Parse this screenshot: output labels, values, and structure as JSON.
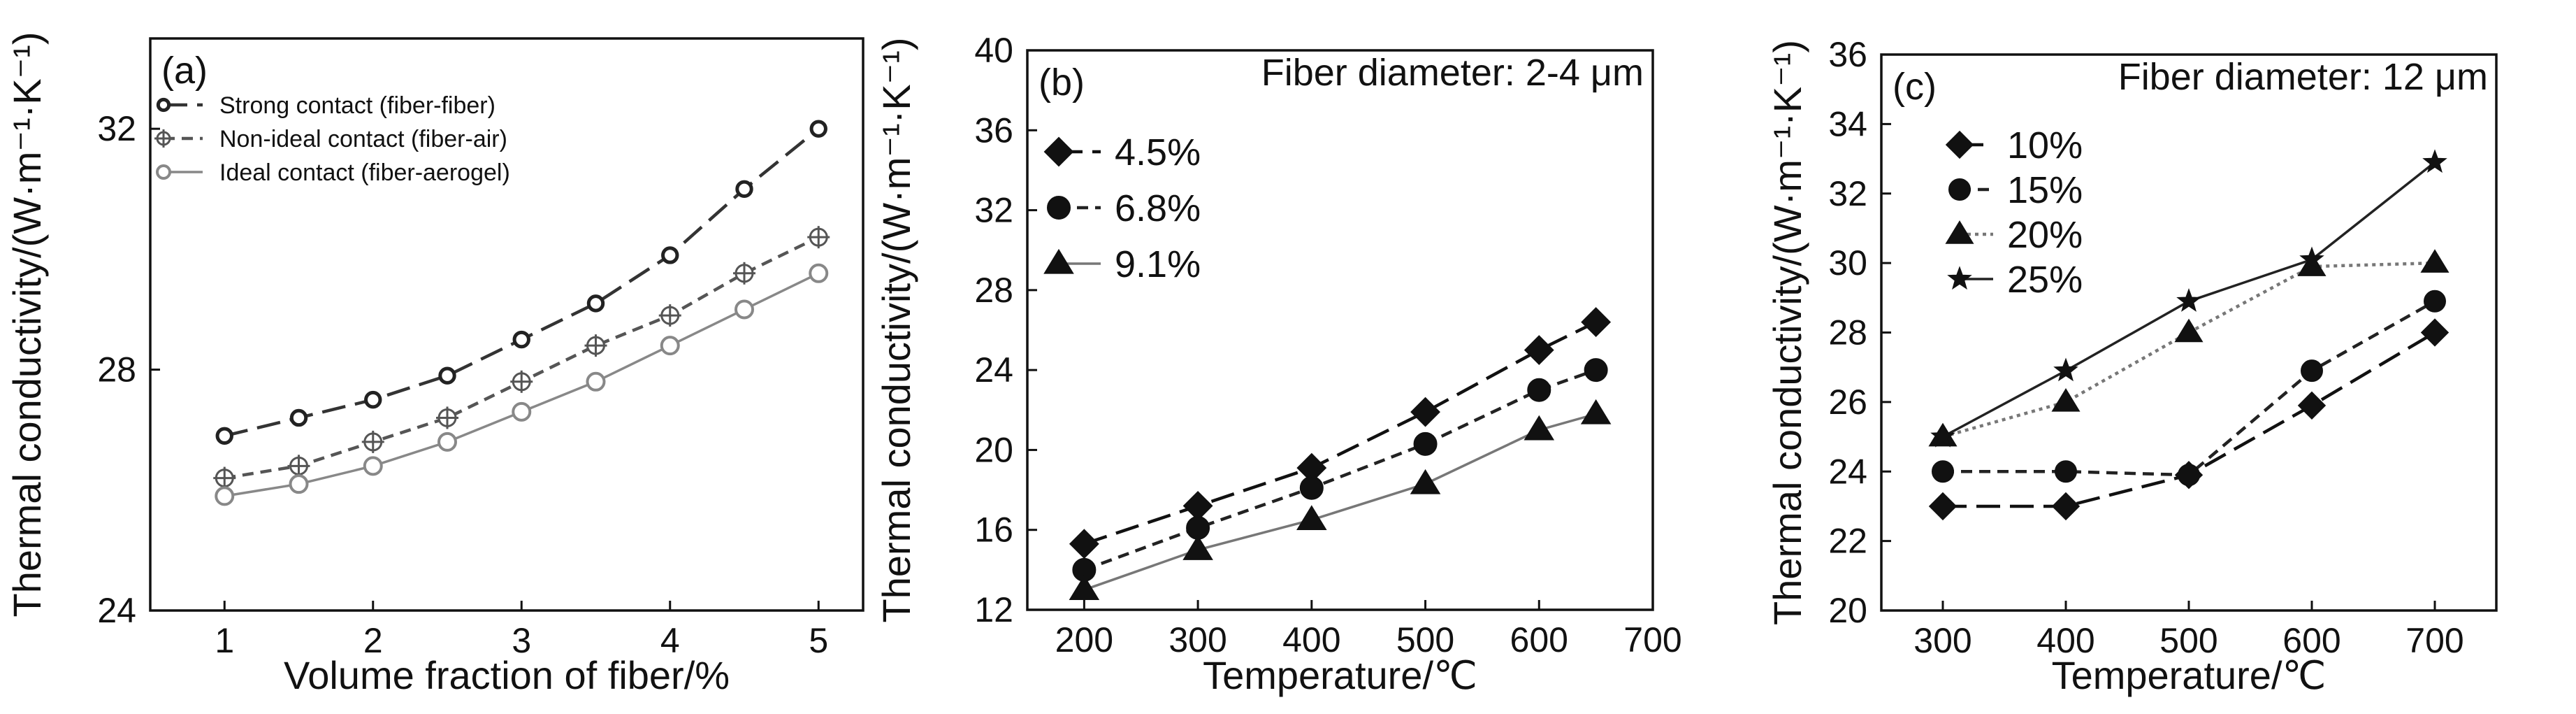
{
  "chart_data": [
    {
      "panel": "(a)",
      "type": "line",
      "xlabel": "Volume fraction of fiber/%",
      "ylabel": "Thermal conductivity/(W·m⁻¹·K⁻¹)",
      "xlim": [
        0.5,
        5.3
      ],
      "ylim": [
        24,
        33.5
      ],
      "xticks": [
        1,
        2,
        3,
        4,
        5
      ],
      "yticks": [
        24,
        28,
        32
      ],
      "x": [
        1,
        1.5,
        2,
        2.5,
        3,
        3.5,
        4,
        4.5,
        5
      ],
      "legend_position": "top-left",
      "series": [
        {
          "name": "Strong contact (fiber-fiber)",
          "marker": "circle-small",
          "dash": "long",
          "color": "#333333",
          "values": [
            26.9,
            27.2,
            27.5,
            27.9,
            28.5,
            29.1,
            29.9,
            31.0,
            32.0
          ]
        },
        {
          "name": "Non-ideal contact (fiber-air)",
          "marker": "circle-cross",
          "dash": "short",
          "color": "#555555",
          "values": [
            26.2,
            26.4,
            26.8,
            27.2,
            27.8,
            28.4,
            28.9,
            29.6,
            30.2
          ]
        },
        {
          "name": "Ideal contact (fiber-aerogel)",
          "marker": "circle-open",
          "dash": "solid",
          "color": "#888888",
          "values": [
            25.9,
            26.1,
            26.4,
            26.8,
            27.3,
            27.8,
            28.4,
            29.0,
            29.6
          ]
        }
      ]
    },
    {
      "panel": "(b)",
      "type": "line",
      "annotation": "Fiber diameter: 2-4 μm",
      "xlabel": "Temperature/℃",
      "ylabel": "Thermal conductivity/(W·m⁻¹·K⁻¹)",
      "xlim": [
        150,
        700
      ],
      "ylim": [
        12,
        40
      ],
      "xticks": [
        200,
        300,
        400,
        500,
        600,
        700
      ],
      "yticks": [
        12,
        16,
        20,
        24,
        28,
        32,
        36,
        40
      ],
      "x": [
        200,
        300,
        400,
        500,
        600,
        650
      ],
      "legend_position": "top-left",
      "series": [
        {
          "name": "4.5%",
          "marker": "diamond",
          "dash": "long",
          "color": "#111111",
          "values": [
            15.3,
            17.2,
            19.1,
            21.9,
            25.0,
            26.4
          ]
        },
        {
          "name": "6.8%",
          "marker": "circle",
          "dash": "short",
          "color": "#222222",
          "values": [
            14.0,
            16.1,
            18.1,
            20.3,
            23.0,
            24.0
          ]
        },
        {
          "name": "9.1%",
          "marker": "triangle",
          "dash": "solid",
          "color": "#777777",
          "values": [
            13.0,
            15.0,
            16.5,
            18.3,
            21.0,
            21.8
          ]
        }
      ]
    },
    {
      "panel": "(c)",
      "type": "line",
      "annotation": "Fiber diameter: 12 μm",
      "xlabel": "Temperature/℃",
      "ylabel": "Thermal conductivity/(W·m⁻¹·K⁻¹)",
      "xlim": [
        250,
        750
      ],
      "ylim": [
        20,
        36
      ],
      "xticks": [
        300,
        400,
        500,
        600,
        700
      ],
      "yticks": [
        20,
        22,
        24,
        26,
        28,
        30,
        32,
        34,
        36
      ],
      "x": [
        300,
        400,
        500,
        600,
        700
      ],
      "legend_position": "top-left",
      "series": [
        {
          "name": "10%",
          "marker": "diamond",
          "dash": "long",
          "color": "#111111",
          "values": [
            23.0,
            23.0,
            23.9,
            25.9,
            28.0
          ]
        },
        {
          "name": "15%",
          "marker": "circle",
          "dash": "short",
          "color": "#222222",
          "values": [
            24.0,
            24.0,
            23.9,
            26.9,
            28.9
          ]
        },
        {
          "name": "20%",
          "marker": "triangle",
          "dash": "dotted",
          "color": "#777777",
          "values": [
            25.0,
            26.0,
            28.0,
            29.9,
            30.0
          ]
        },
        {
          "name": "25%",
          "marker": "star",
          "dash": "solid",
          "color": "#222222",
          "values": [
            25.0,
            26.9,
            28.9,
            30.1,
            32.9
          ]
        }
      ]
    }
  ]
}
